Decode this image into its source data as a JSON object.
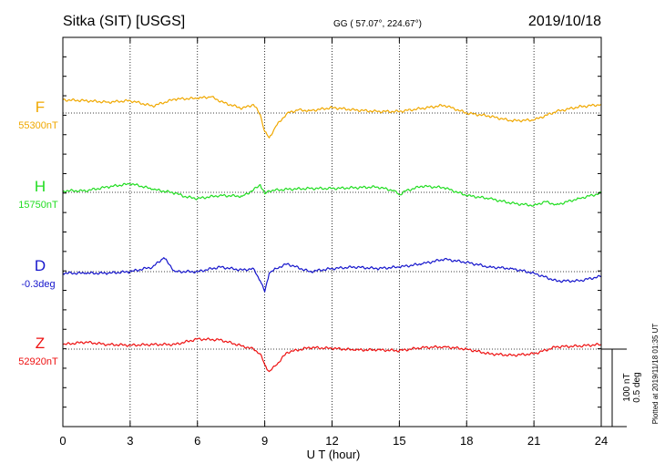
{
  "header": {
    "station": "Sitka (SIT)  [USGS]",
    "coords": "GG ( 57.07°, 224.67°)",
    "date": "2019/10/18"
  },
  "footer": {
    "plotted": "Plotted at 2019/11/18 01:35 UT",
    "scale_nt": "100 nT",
    "scale_deg": "0.5 deg"
  },
  "chart_data": {
    "type": "line",
    "title": "Sitka (SIT)  [USGS]",
    "xlabel": "U T (hour)",
    "xlim": [
      0,
      24
    ],
    "x_ticks": [
      0,
      3,
      6,
      9,
      12,
      15,
      18,
      21,
      24
    ],
    "grid": true,
    "scale": "100 nT / 0.5 deg",
    "series": [
      {
        "name": "F",
        "baseline_label": "55300nT",
        "baseline": 55300,
        "unit": "nT",
        "color": "#f0a800",
        "points": [
          [
            0,
            55317
          ],
          [
            1,
            55316
          ],
          [
            2,
            55314
          ],
          [
            3,
            55316
          ],
          [
            4,
            55309
          ],
          [
            5,
            55318
          ],
          [
            6,
            55319
          ],
          [
            6.6,
            55321
          ],
          [
            7.2,
            55313
          ],
          [
            8.0,
            55306
          ],
          [
            8.5,
            55311
          ],
          [
            8.8,
            55298
          ],
          [
            9.0,
            55276
          ],
          [
            9.2,
            55268
          ],
          [
            9.5,
            55283
          ],
          [
            10,
            55300
          ],
          [
            10.5,
            55304
          ],
          [
            11,
            55303
          ],
          [
            12,
            55307
          ],
          [
            13,
            55304
          ],
          [
            14,
            55302
          ],
          [
            15,
            55302
          ],
          [
            16,
            55306
          ],
          [
            17,
            55310
          ],
          [
            18,
            55300
          ],
          [
            19,
            55296
          ],
          [
            20,
            55290
          ],
          [
            21,
            55291
          ],
          [
            22,
            55302
          ],
          [
            23,
            55308
          ],
          [
            24,
            55311
          ]
        ]
      },
      {
        "name": "H",
        "baseline_label": "15750nT",
        "baseline": 15750,
        "unit": "nT",
        "color": "#22dd22",
        "points": [
          [
            0,
            15752
          ],
          [
            1,
            15752
          ],
          [
            2,
            15757
          ],
          [
            3,
            15761
          ],
          [
            3.5,
            15758
          ],
          [
            4,
            15754
          ],
          [
            5,
            15749
          ],
          [
            5.5,
            15744
          ],
          [
            6,
            15742
          ],
          [
            7,
            15746
          ],
          [
            8,
            15745
          ],
          [
            8.5,
            15753
          ],
          [
            8.8,
            15760
          ],
          [
            9,
            15748
          ],
          [
            9.2,
            15752
          ],
          [
            10,
            15754
          ],
          [
            11,
            15755
          ],
          [
            12,
            15755
          ],
          [
            13,
            15756
          ],
          [
            14,
            15757
          ],
          [
            14.8,
            15752
          ],
          [
            15,
            15747
          ],
          [
            15.3,
            15752
          ],
          [
            16,
            15758
          ],
          [
            17,
            15756
          ],
          [
            18,
            15746
          ],
          [
            19,
            15742
          ],
          [
            20,
            15736
          ],
          [
            21,
            15733
          ],
          [
            21.5,
            15738
          ],
          [
            22,
            15734
          ],
          [
            23,
            15742
          ],
          [
            24,
            15749
          ]
        ]
      },
      {
        "name": "D",
        "baseline_label": "-0.3deg",
        "baseline": -0.3,
        "unit": "deg",
        "color": "#1515cc",
        "points": [
          [
            0,
            -0.31
          ],
          [
            1,
            -0.31
          ],
          [
            2,
            -0.31
          ],
          [
            3,
            -0.3
          ],
          [
            4,
            -0.27
          ],
          [
            4.5,
            -0.21
          ],
          [
            5,
            -0.3
          ],
          [
            6,
            -0.3
          ],
          [
            7,
            -0.27
          ],
          [
            8,
            -0.29
          ],
          [
            8.5,
            -0.28
          ],
          [
            8.8,
            -0.36
          ],
          [
            9.0,
            -0.43
          ],
          [
            9.2,
            -0.31
          ],
          [
            9.5,
            -0.28
          ],
          [
            10,
            -0.25
          ],
          [
            11,
            -0.3
          ],
          [
            12,
            -0.28
          ],
          [
            13,
            -0.27
          ],
          [
            14,
            -0.28
          ],
          [
            15,
            -0.27
          ],
          [
            16,
            -0.25
          ],
          [
            17,
            -0.22
          ],
          [
            18,
            -0.24
          ],
          [
            19,
            -0.27
          ],
          [
            20,
            -0.28
          ],
          [
            21,
            -0.31
          ],
          [
            22,
            -0.36
          ],
          [
            23,
            -0.36
          ],
          [
            24,
            -0.33
          ]
        ]
      },
      {
        "name": "Z",
        "baseline_label": "52920nT",
        "baseline": 52920,
        "unit": "nT",
        "color": "#ee1111",
        "points": [
          [
            0,
            52926
          ],
          [
            1,
            52929
          ],
          [
            2,
            52926
          ],
          [
            3,
            52925
          ],
          [
            4,
            52926
          ],
          [
            5,
            52926
          ],
          [
            6,
            52933
          ],
          [
            7,
            52932
          ],
          [
            8,
            52924
          ],
          [
            8.5,
            52920
          ],
          [
            8.8,
            52914
          ],
          [
            9.0,
            52900
          ],
          [
            9.2,
            52891
          ],
          [
            9.5,
            52899
          ],
          [
            10,
            52916
          ],
          [
            11,
            52922
          ],
          [
            12,
            52921
          ],
          [
            13,
            52919
          ],
          [
            14,
            52919
          ],
          [
            15,
            52918
          ],
          [
            16,
            52922
          ],
          [
            17,
            52923
          ],
          [
            18,
            52920
          ],
          [
            19,
            52914
          ],
          [
            20,
            52912
          ],
          [
            21,
            52914
          ],
          [
            22,
            52923
          ],
          [
            23,
            52924
          ],
          [
            24,
            52926
          ]
        ]
      }
    ]
  }
}
